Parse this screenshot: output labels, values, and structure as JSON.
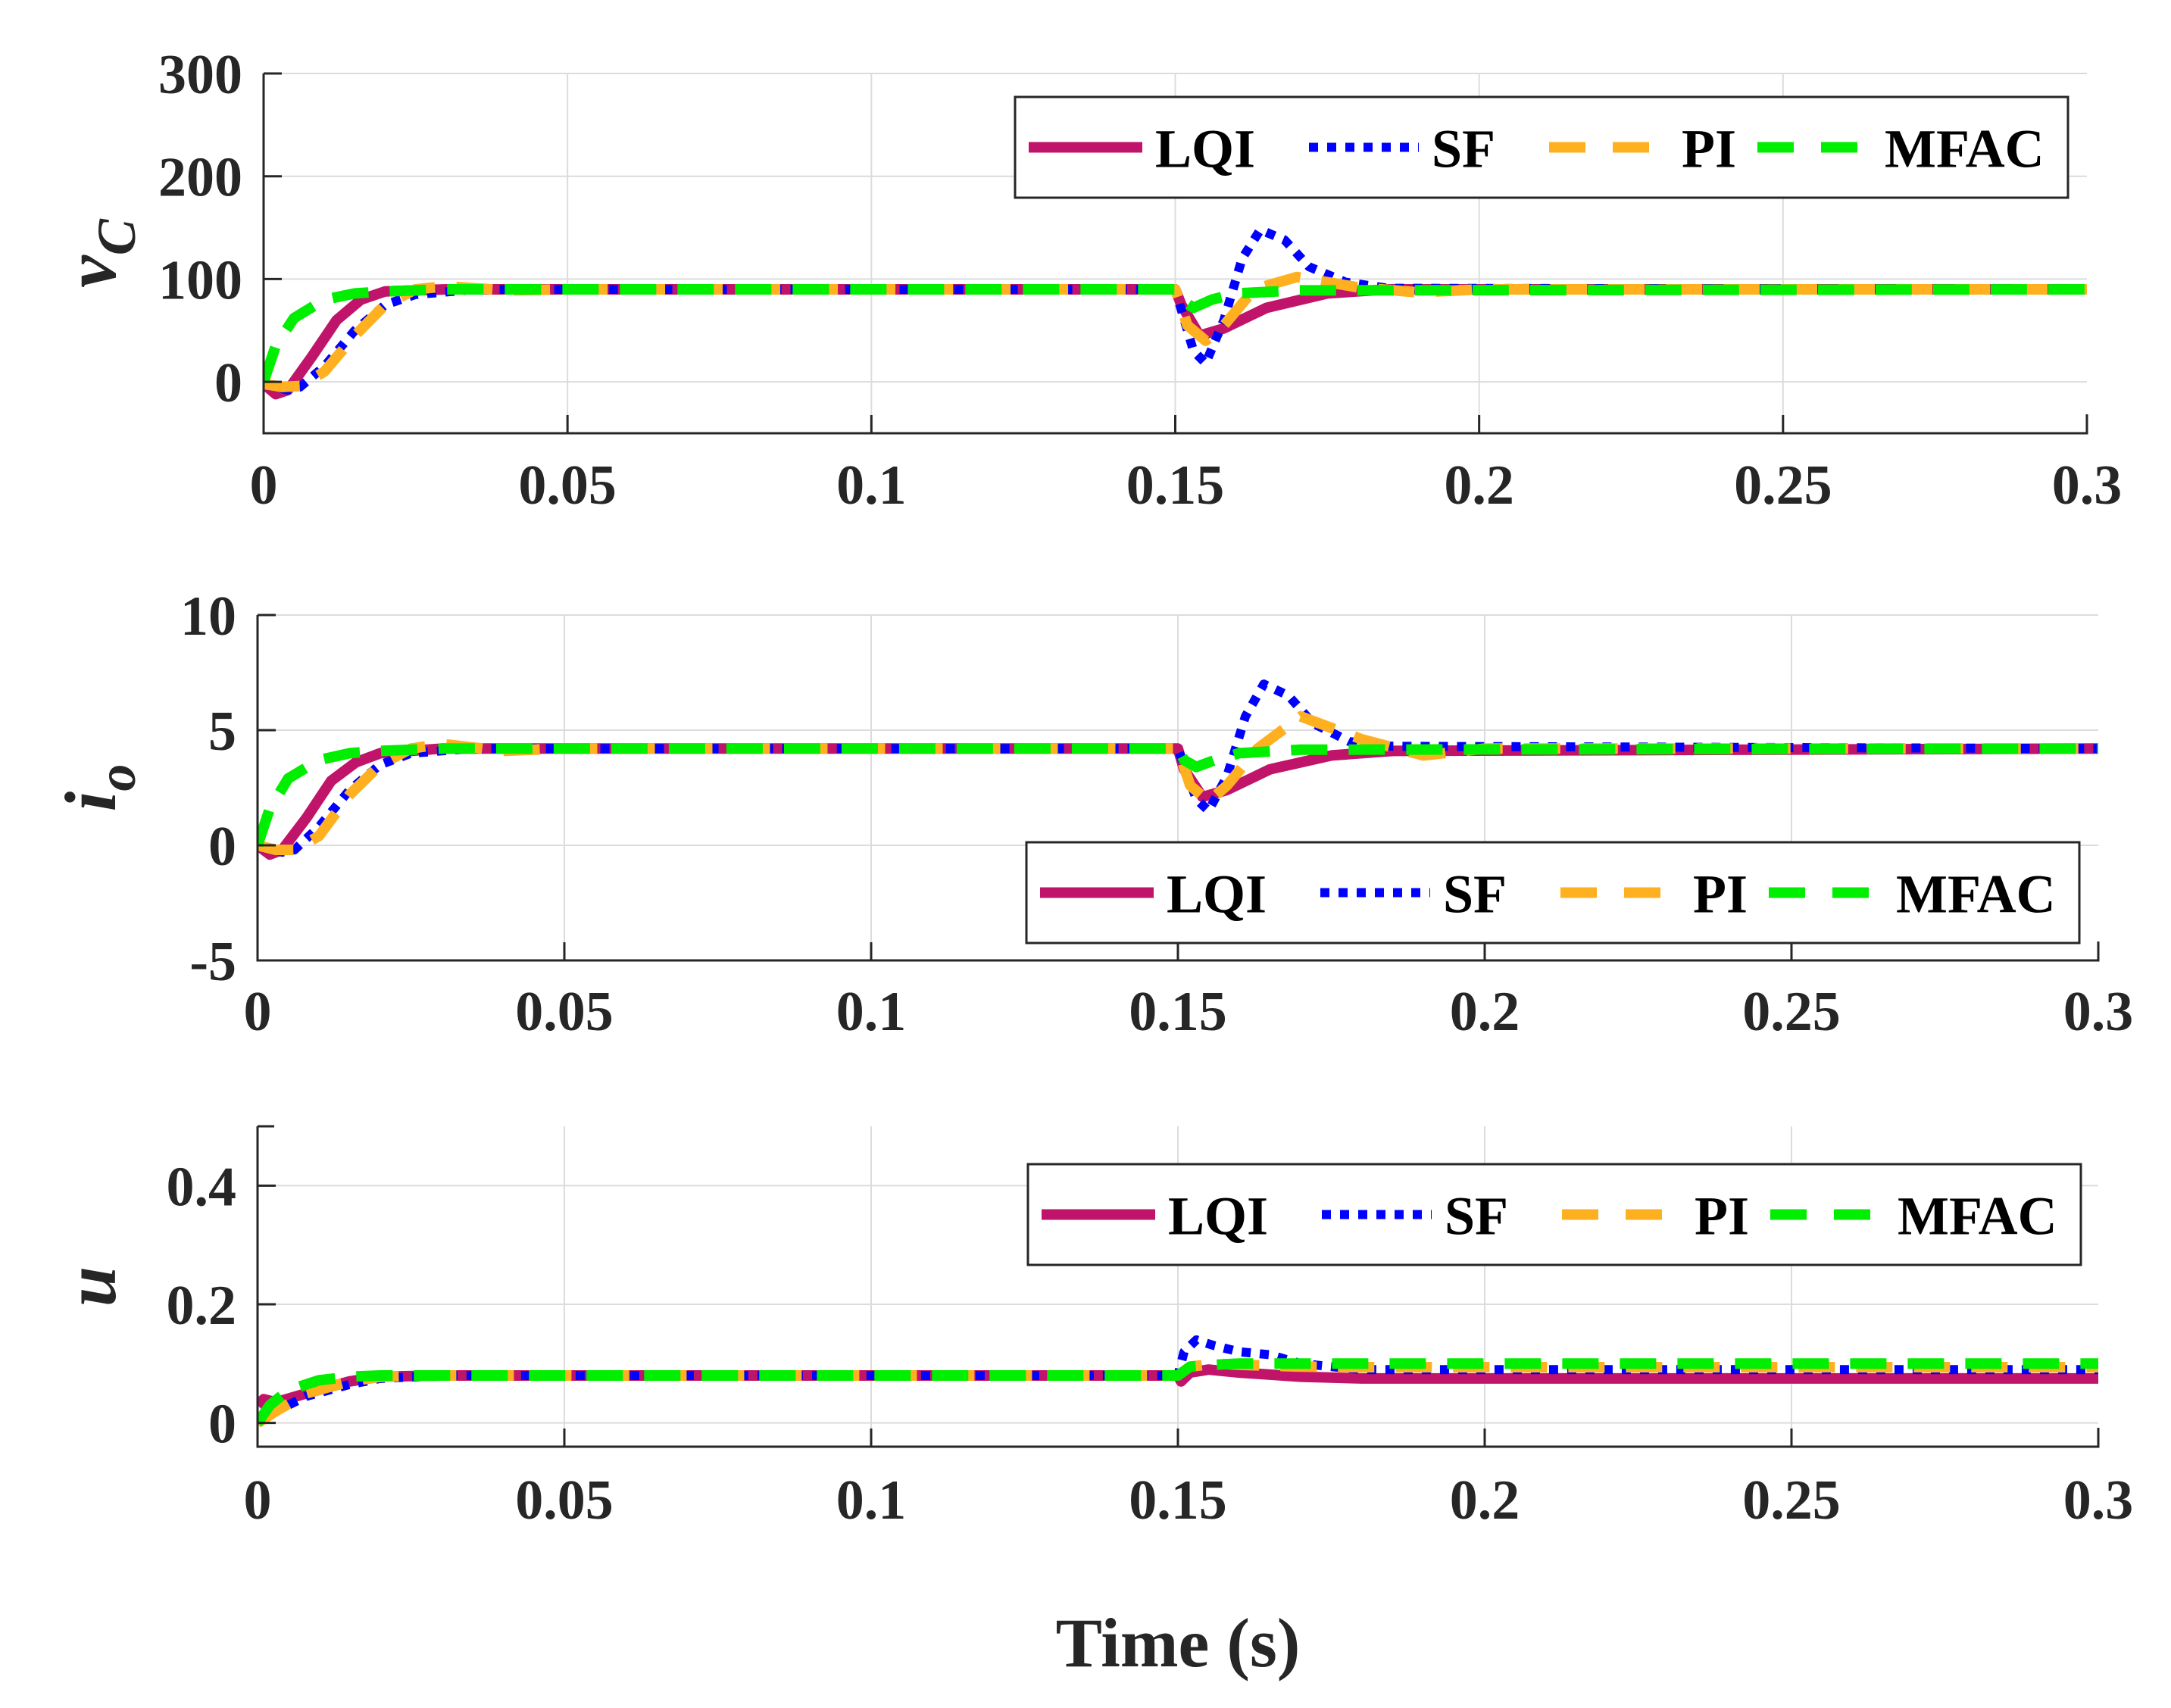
{
  "chart_data": [
    {
      "type": "line",
      "ylabel": "v",
      "ylabel_sub": "C",
      "xlim": [
        0,
        0.3
      ],
      "ylim": [
        -50,
        300
      ],
      "yticks": [
        0,
        100,
        200,
        300
      ],
      "ytick_labels": [
        "0",
        "100",
        "200",
        "300"
      ],
      "xticks": [
        0,
        0.05,
        0.1,
        0.15,
        0.2,
        0.25,
        0.3
      ],
      "xtick_labels": [
        "0",
        "0.05",
        "0.1",
        "0.15",
        "0.2",
        "0.25",
        "0.3"
      ],
      "legend_position": "top-right",
      "series": [
        {
          "name": "LQI",
          "color": "#c0146a",
          "style": "solid",
          "x": [
            0,
            0.002,
            0.004,
            0.008,
            0.012,
            0.016,
            0.02,
            0.03,
            0.15,
            0.151,
            0.154,
            0.158,
            0.165,
            0.175,
            0.185,
            0.3
          ],
          "y": [
            -2,
            -12,
            -8,
            25,
            60,
            80,
            88,
            90,
            90,
            75,
            45,
            52,
            72,
            86,
            90,
            90
          ]
        },
        {
          "name": "SF",
          "color": "#0000ff",
          "style": "dotted",
          "x": [
            0,
            0.004,
            0.006,
            0.01,
            0.015,
            0.02,
            0.025,
            0.035,
            0.15,
            0.153,
            0.155,
            0.158,
            0.161,
            0.164,
            0.168,
            0.172,
            0.178,
            0.185,
            0.3
          ],
          "y": [
            -2,
            -8,
            -5,
            15,
            50,
            75,
            85,
            90,
            90,
            30,
            18,
            60,
            120,
            148,
            138,
            112,
            97,
            91,
            90
          ]
        },
        {
          "name": "PI",
          "color": "#ffb020",
          "style": "dashed",
          "x": [
            0,
            0.003,
            0.006,
            0.01,
            0.015,
            0.02,
            0.025,
            0.03,
            0.04,
            0.05,
            0.15,
            0.152,
            0.155,
            0.158,
            0.163,
            0.17,
            0.18,
            0.19,
            0.2,
            0.3
          ],
          "y": [
            -2,
            -5,
            -4,
            10,
            45,
            75,
            90,
            93,
            89,
            90,
            90,
            55,
            40,
            55,
            90,
            102,
            92,
            87,
            90,
            90
          ]
        },
        {
          "name": "MFAC",
          "color": "#00ee00",
          "style": "dashed",
          "x": [
            0,
            0.002,
            0.005,
            0.01,
            0.015,
            0.02,
            0.03,
            0.15,
            0.151,
            0.153,
            0.156,
            0.16,
            0.17,
            0.3
          ],
          "y": [
            0,
            35,
            62,
            80,
            86,
            88,
            90,
            90,
            80,
            72,
            80,
            86,
            89,
            90
          ]
        }
      ]
    },
    {
      "type": "line",
      "ylabel": "i",
      "ylabel_sub": "o",
      "xlim": [
        0,
        0.3
      ],
      "ylim": [
        -5,
        10
      ],
      "yticks": [
        -5,
        0,
        5,
        10
      ],
      "ytick_labels": [
        "-5",
        "0",
        "5",
        "10"
      ],
      "xticks": [
        0,
        0.05,
        0.1,
        0.15,
        0.2,
        0.25,
        0.3
      ],
      "xtick_labels": [
        "0",
        "0.05",
        "0.1",
        "0.15",
        "0.2",
        "0.25",
        "0.3"
      ],
      "legend_position": "bottom-right",
      "series": [
        {
          "name": "LQI",
          "color": "#c0146a",
          "style": "solid",
          "x": [
            0,
            0.002,
            0.004,
            0.008,
            0.012,
            0.016,
            0.02,
            0.03,
            0.15,
            0.151,
            0.154,
            0.158,
            0.165,
            0.175,
            0.185,
            0.3
          ],
          "y": [
            0,
            -0.4,
            -0.2,
            1.2,
            2.8,
            3.6,
            4.0,
            4.2,
            4.2,
            3.3,
            2.1,
            2.4,
            3.3,
            3.9,
            4.1,
            4.2
          ]
        },
        {
          "name": "SF",
          "color": "#0000ff",
          "style": "dotted",
          "x": [
            0,
            0.004,
            0.006,
            0.01,
            0.015,
            0.02,
            0.025,
            0.035,
            0.15,
            0.153,
            0.155,
            0.158,
            0.161,
            0.164,
            0.168,
            0.172,
            0.178,
            0.185,
            0.3
          ],
          "y": [
            0,
            -0.3,
            -0.2,
            0.8,
            2.4,
            3.5,
            4.0,
            4.2,
            4.2,
            2.0,
            1.5,
            3.0,
            5.6,
            7.0,
            6.5,
            5.3,
            4.5,
            4.3,
            4.2
          ]
        },
        {
          "name": "PI",
          "color": "#ffb020",
          "style": "dashed",
          "x": [
            0,
            0.003,
            0.006,
            0.01,
            0.015,
            0.02,
            0.025,
            0.03,
            0.04,
            0.05,
            0.15,
            0.152,
            0.155,
            0.158,
            0.163,
            0.17,
            0.18,
            0.19,
            0.2,
            0.3
          ],
          "y": [
            0,
            -0.2,
            -0.2,
            0.4,
            2.2,
            3.5,
            4.2,
            4.4,
            4.1,
            4.2,
            4.2,
            2.6,
            1.9,
            2.6,
            4.2,
            5.6,
            4.6,
            3.9,
            4.2,
            4.2
          ]
        },
        {
          "name": "MFAC",
          "color": "#00ee00",
          "style": "dashed",
          "x": [
            0,
            0.002,
            0.005,
            0.01,
            0.015,
            0.02,
            0.03,
            0.15,
            0.151,
            0.153,
            0.156,
            0.16,
            0.17,
            0.3
          ],
          "y": [
            0,
            1.6,
            2.9,
            3.7,
            4.0,
            4.1,
            4.2,
            4.2,
            3.7,
            3.4,
            3.7,
            4.0,
            4.15,
            4.2
          ]
        }
      ]
    },
    {
      "type": "line",
      "ylabel": "u",
      "ylabel_sub": "",
      "xlabel": "Time (s)",
      "xlim": [
        0,
        0.3
      ],
      "ylim": [
        -0.04,
        0.5
      ],
      "yticks": [
        0,
        0.2,
        0.4
      ],
      "ytick_labels": [
        "0",
        "0.2",
        "0.4"
      ],
      "xticks": [
        0,
        0.05,
        0.1,
        0.15,
        0.2,
        0.25,
        0.3
      ],
      "xtick_labels": [
        "0",
        "0.05",
        "0.1",
        "0.15",
        "0.2",
        "0.25",
        "0.3"
      ],
      "legend_position": "top-right",
      "series": [
        {
          "name": "LQI",
          "color": "#c0146a",
          "style": "solid",
          "x": [
            0,
            0.001,
            0.003,
            0.008,
            0.015,
            0.02,
            0.03,
            0.15,
            0.1505,
            0.152,
            0.155,
            0.16,
            0.17,
            0.18,
            0.3
          ],
          "y": [
            0.03,
            0.04,
            0.035,
            0.05,
            0.07,
            0.078,
            0.08,
            0.08,
            0.07,
            0.085,
            0.09,
            0.085,
            0.078,
            0.075,
            0.075
          ]
        },
        {
          "name": "SF",
          "color": "#0000ff",
          "style": "dotted",
          "x": [
            0,
            0.003,
            0.008,
            0.015,
            0.02,
            0.03,
            0.15,
            0.151,
            0.153,
            0.156,
            0.16,
            0.165,
            0.17,
            0.18,
            0.3
          ],
          "y": [
            0.0,
            0.02,
            0.045,
            0.065,
            0.075,
            0.08,
            0.08,
            0.12,
            0.14,
            0.13,
            0.12,
            0.115,
            0.1,
            0.09,
            0.09
          ]
        },
        {
          "name": "PI",
          "color": "#ffb020",
          "style": "dashed",
          "x": [
            0,
            0.003,
            0.008,
            0.015,
            0.02,
            0.03,
            0.15,
            0.152,
            0.156,
            0.16,
            0.17,
            0.18,
            0.3
          ],
          "y": [
            0.0,
            0.02,
            0.05,
            0.07,
            0.078,
            0.08,
            0.08,
            0.095,
            0.1,
            0.098,
            0.095,
            0.094,
            0.094
          ]
        },
        {
          "name": "MFAC",
          "color": "#00ee00",
          "style": "dashed",
          "x": [
            0,
            0.002,
            0.005,
            0.01,
            0.015,
            0.02,
            0.03,
            0.15,
            0.152,
            0.156,
            0.16,
            0.17,
            0.3
          ],
          "y": [
            0.0,
            0.03,
            0.055,
            0.072,
            0.078,
            0.08,
            0.08,
            0.08,
            0.095,
            0.098,
            0.1,
            0.1,
            0.1
          ]
        }
      ]
    }
  ]
}
